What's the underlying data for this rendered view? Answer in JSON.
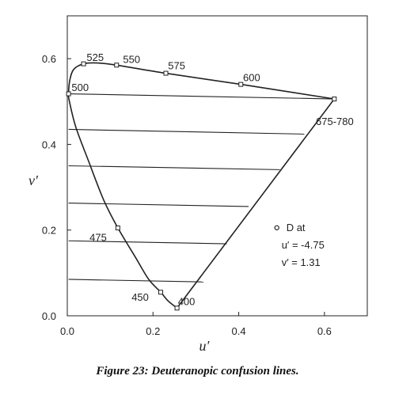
{
  "caption": "Figure 23:  Deuteranopic confusion lines.",
  "chart_data": {
    "type": "line",
    "title": "",
    "xlabel": "u′",
    "ylabel": "v′",
    "xlim": [
      0,
      0.7
    ],
    "ylim": [
      0,
      0.7
    ],
    "xticks": [
      {
        "value": 0.0,
        "label": "0.0"
      },
      {
        "value": 0.2,
        "label": "0.2"
      },
      {
        "value": 0.4,
        "label": "0.4"
      },
      {
        "value": 0.6,
        "label": "0.6"
      }
    ],
    "yticks": [
      {
        "value": 0.0,
        "label": "0.0"
      },
      {
        "value": 0.2,
        "label": "0.2"
      },
      {
        "value": 0.4,
        "label": "0.4"
      },
      {
        "value": 0.6,
        "label": "0.6"
      }
    ],
    "grid": false,
    "spectrum_locus": [
      [
        0.256,
        0.018
      ],
      [
        0.235,
        0.035
      ],
      [
        0.218,
        0.055
      ],
      [
        0.19,
        0.085
      ],
      [
        0.16,
        0.135
      ],
      [
        0.118,
        0.205
      ],
      [
        0.085,
        0.27
      ],
      [
        0.05,
        0.36
      ],
      [
        0.02,
        0.44
      ],
      [
        0.005,
        0.5
      ],
      [
        0.003,
        0.518
      ],
      [
        0.006,
        0.55
      ],
      [
        0.015,
        0.575
      ],
      [
        0.038,
        0.588
      ],
      [
        0.07,
        0.59
      ],
      [
        0.115,
        0.585
      ],
      [
        0.23,
        0.566
      ],
      [
        0.405,
        0.54
      ],
      [
        0.623,
        0.506
      ]
    ],
    "markers": [
      {
        "u": 0.256,
        "v": 0.018,
        "label": "400",
        "lx": 0.258,
        "ly": 0.025
      },
      {
        "u": 0.218,
        "v": 0.055,
        "label": "450",
        "lx": 0.15,
        "ly": 0.035
      },
      {
        "u": 0.118,
        "v": 0.205,
        "label": "475",
        "lx": 0.052,
        "ly": 0.175
      },
      {
        "u": 0.003,
        "v": 0.518,
        "label": "500",
        "lx": 0.01,
        "ly": 0.525
      },
      {
        "u": 0.038,
        "v": 0.588,
        "label": "525",
        "lx": 0.045,
        "ly": 0.595
      },
      {
        "u": 0.115,
        "v": 0.585,
        "label": "550",
        "lx": 0.13,
        "ly": 0.59
      },
      {
        "u": 0.23,
        "v": 0.566,
        "label": "575",
        "lx": 0.235,
        "ly": 0.575
      },
      {
        "u": 0.405,
        "v": 0.54,
        "label": "600",
        "lx": 0.41,
        "ly": 0.548
      },
      {
        "u": 0.623,
        "v": 0.506,
        "label": "675-780",
        "lx": 0.58,
        "ly": 0.445
      }
    ],
    "confusion_lines": [
      {
        "from": [
          0.003,
          0.518
        ],
        "to": [
          0.623,
          0.506
        ]
      },
      {
        "from": [
          0.003,
          0.435
        ],
        "to": [
          0.553,
          0.424
        ]
      },
      {
        "from": [
          0.003,
          0.35
        ],
        "to": [
          0.496,
          0.341
        ]
      },
      {
        "from": [
          0.003,
          0.263
        ],
        "to": [
          0.423,
          0.255
        ]
      },
      {
        "from": [
          0.003,
          0.175
        ],
        "to": [
          0.372,
          0.168
        ]
      },
      {
        "from": [
          0.003,
          0.085
        ],
        "to": [
          0.318,
          0.079
        ]
      }
    ],
    "annotation": {
      "lines": [
        "D at",
        "u′ = -4.75",
        "v′ = 1.31"
      ],
      "u": 0.5,
      "v": 0.198
    },
    "colors": {
      "ink": "#222222"
    }
  }
}
